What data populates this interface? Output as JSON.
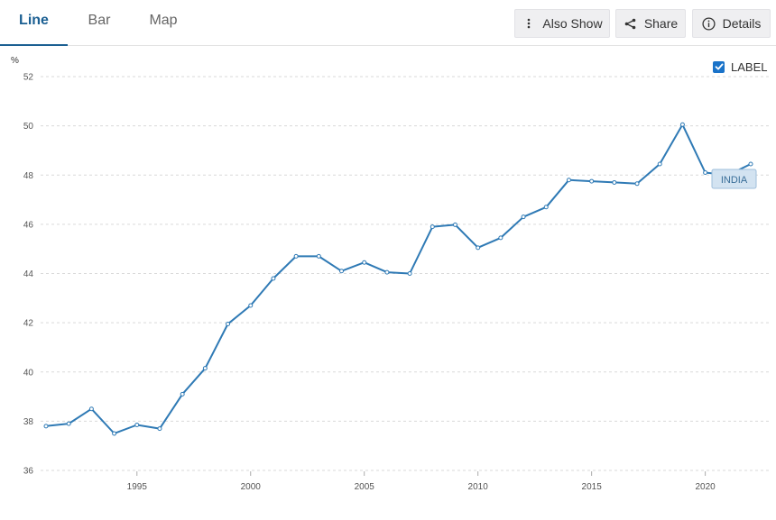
{
  "tabs": [
    {
      "label": "Line",
      "active": true
    },
    {
      "label": "Bar",
      "active": false
    },
    {
      "label": "Map",
      "active": false
    }
  ],
  "toolbar": {
    "also_show_label": "Also Show",
    "share_label": "Share",
    "details_label": "Details"
  },
  "label_toggle": {
    "text": "LABEL",
    "checked": true
  },
  "chart_data": {
    "type": "line",
    "ylabel": "%",
    "ylim": [
      36,
      52
    ],
    "yticks": [
      36,
      38,
      40,
      42,
      44,
      46,
      48,
      50,
      52
    ],
    "xlim": [
      1991,
      2022
    ],
    "xticks": [
      1995,
      2000,
      2005,
      2010,
      2015,
      2020
    ],
    "grid": "horizontal-dashed",
    "series": [
      {
        "name": "INDIA",
        "color": "#2f7ab5",
        "x": [
          1991,
          1992,
          1993,
          1994,
          1995,
          1996,
          1997,
          1998,
          1999,
          2000,
          2001,
          2002,
          2003,
          2004,
          2005,
          2006,
          2007,
          2008,
          2009,
          2010,
          2011,
          2012,
          2013,
          2014,
          2015,
          2016,
          2017,
          2018,
          2019,
          2020,
          2021,
          2022
        ],
        "values": [
          37.8,
          37.9,
          38.5,
          37.5,
          37.85,
          37.7,
          39.1,
          40.15,
          41.95,
          42.7,
          43.8,
          44.7,
          44.7,
          44.1,
          44.45,
          44.05,
          44.0,
          45.9,
          45.98,
          45.05,
          45.45,
          46.3,
          46.7,
          47.8,
          47.75,
          47.7,
          47.65,
          48.45,
          50.05,
          48.1,
          48.0,
          48.45
        ]
      }
    ]
  }
}
